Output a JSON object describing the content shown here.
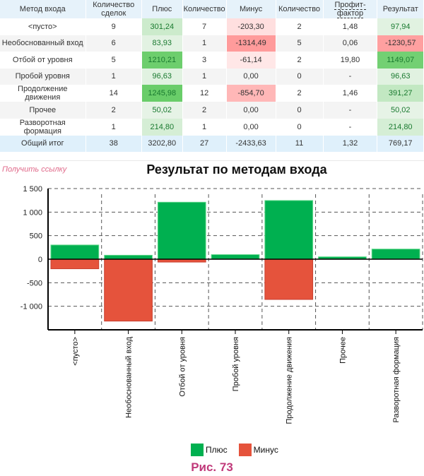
{
  "table": {
    "headers": [
      "Метод входа",
      "Количество сделок",
      "Плюс",
      "Количество",
      "Минус",
      "Количество",
      "Профит-фактор",
      "Результат"
    ],
    "rows": [
      [
        "<пусто>",
        "9",
        "301,24",
        "7",
        "-203,30",
        "2",
        "1,48",
        "97,94"
      ],
      [
        "Необоснованный вход",
        "6",
        "83,93",
        "1",
        "-1314,49",
        "5",
        "0,06",
        "-1230,57"
      ],
      [
        "Отбой от уровня",
        "5",
        "1210,21",
        "3",
        "-61,14",
        "2",
        "19,80",
        "1149,07"
      ],
      [
        "Пробой уровня",
        "1",
        "96,63",
        "1",
        "0,00",
        "0",
        "-",
        "96,63"
      ],
      [
        "Продолжение движения",
        "14",
        "1245,98",
        "12",
        "-854,70",
        "2",
        "1,46",
        "391,27"
      ],
      [
        "Прочее",
        "2",
        "50,02",
        "2",
        "0,00",
        "0",
        "-",
        "50,02"
      ],
      [
        "Разворотная формация",
        "1",
        "214,80",
        "1",
        "0,00",
        "0",
        "-",
        "214,80"
      ]
    ],
    "total": [
      "Общий итог",
      "38",
      "3202,80",
      "27",
      "-2433,63",
      "11",
      "1,32",
      "769,17"
    ]
  },
  "link_label": "Получить ссылку",
  "caption": "Рис. 73",
  "colors": {
    "plus": "#00b050",
    "minus": "#e5533c"
  },
  "chart_data": {
    "type": "bar",
    "title": "Результат по методам входа",
    "categories": [
      "<пусто>",
      "Необоснованный вход",
      "Отбой от уровня",
      "Пробой уровня",
      "Продолжение движения",
      "Прочее",
      "Разворотная формация"
    ],
    "series": [
      {
        "name": "Плюс",
        "values": [
          301.24,
          83.93,
          1210.21,
          96.63,
          1245.98,
          50.02,
          214.8
        ]
      },
      {
        "name": "Минус",
        "values": [
          -203.3,
          -1314.49,
          -61.14,
          0,
          -854.7,
          0,
          0
        ]
      }
    ],
    "ylim": [
      -1500,
      1500
    ],
    "yticks": [
      1500,
      1000,
      500,
      0,
      -500,
      -1000
    ],
    "ytick_labels": [
      "1 500",
      "1 000",
      "500",
      "0",
      "-500",
      "-1 000"
    ],
    "legend": "bottom",
    "grid": true
  }
}
